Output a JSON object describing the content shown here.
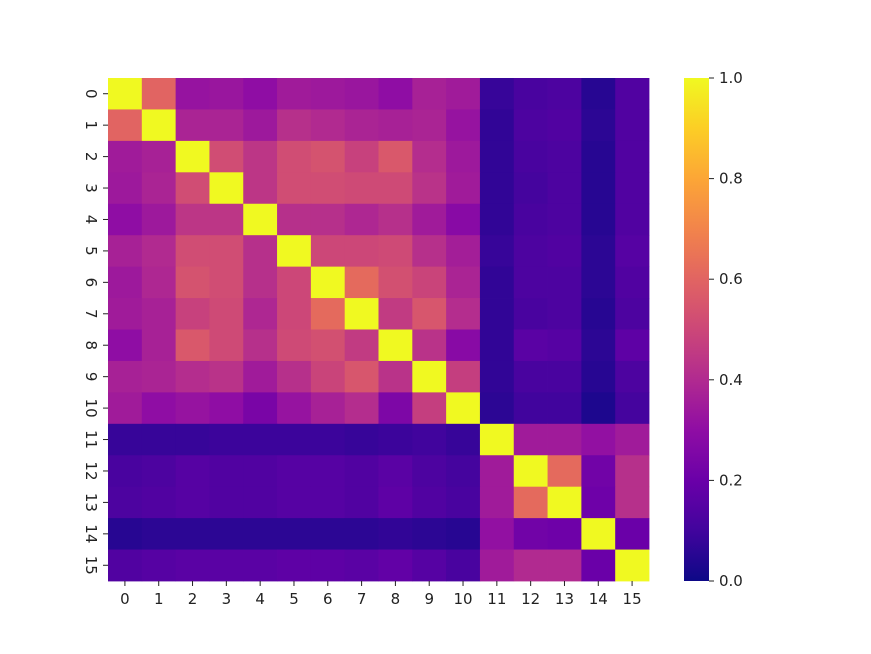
{
  "chart_data": {
    "type": "heatmap",
    "title": "",
    "xlabel": "",
    "ylabel": "",
    "colormap": "plasma",
    "x_categories": [
      "0",
      "1",
      "2",
      "3",
      "4",
      "5",
      "6",
      "7",
      "8",
      "9",
      "10",
      "11",
      "12",
      "13",
      "14",
      "15"
    ],
    "y_categories": [
      "0",
      "1",
      "2",
      "3",
      "4",
      "5",
      "6",
      "7",
      "8",
      "9",
      "10",
      "11",
      "12",
      "13",
      "14",
      "15"
    ],
    "colorbar": {
      "range": [
        0.0,
        1.0
      ],
      "ticks": [
        0.0,
        0.2,
        0.4,
        0.6,
        0.8,
        1.0
      ],
      "tick_labels": [
        "0.0",
        "0.2",
        "0.4",
        "0.6",
        "0.8",
        "1.0"
      ]
    },
    "values": [
      [
        1.0,
        0.6,
        0.32,
        0.33,
        0.3,
        0.35,
        0.34,
        0.33,
        0.3,
        0.37,
        0.35,
        0.08,
        0.12,
        0.13,
        0.05,
        0.14
      ],
      [
        0.6,
        1.0,
        0.38,
        0.38,
        0.34,
        0.42,
        0.4,
        0.38,
        0.37,
        0.38,
        0.32,
        0.07,
        0.13,
        0.14,
        0.06,
        0.14
      ],
      [
        0.35,
        0.37,
        1.0,
        0.52,
        0.44,
        0.52,
        0.54,
        0.48,
        0.56,
        0.41,
        0.34,
        0.07,
        0.12,
        0.13,
        0.05,
        0.14
      ],
      [
        0.34,
        0.38,
        0.52,
        1.0,
        0.44,
        0.52,
        0.52,
        0.51,
        0.51,
        0.43,
        0.35,
        0.07,
        0.11,
        0.13,
        0.05,
        0.14
      ],
      [
        0.3,
        0.34,
        0.44,
        0.44,
        1.0,
        0.42,
        0.42,
        0.39,
        0.42,
        0.35,
        0.28,
        0.07,
        0.12,
        0.13,
        0.05,
        0.14
      ],
      [
        0.37,
        0.4,
        0.52,
        0.52,
        0.42,
        1.0,
        0.5,
        0.5,
        0.51,
        0.42,
        0.36,
        0.08,
        0.13,
        0.14,
        0.06,
        0.15
      ],
      [
        0.34,
        0.39,
        0.54,
        0.52,
        0.42,
        0.5,
        1.0,
        0.62,
        0.53,
        0.49,
        0.38,
        0.07,
        0.13,
        0.13,
        0.06,
        0.14
      ],
      [
        0.35,
        0.37,
        0.48,
        0.51,
        0.39,
        0.5,
        0.62,
        1.0,
        0.46,
        0.55,
        0.41,
        0.07,
        0.12,
        0.13,
        0.05,
        0.13
      ],
      [
        0.3,
        0.37,
        0.56,
        0.51,
        0.42,
        0.51,
        0.53,
        0.46,
        1.0,
        0.43,
        0.28,
        0.07,
        0.16,
        0.15,
        0.06,
        0.17
      ],
      [
        0.37,
        0.38,
        0.41,
        0.43,
        0.35,
        0.42,
        0.49,
        0.55,
        0.43,
        1.0,
        0.47,
        0.07,
        0.12,
        0.12,
        0.05,
        0.13
      ],
      [
        0.35,
        0.3,
        0.32,
        0.3,
        0.24,
        0.32,
        0.37,
        0.41,
        0.25,
        0.47,
        1.0,
        0.06,
        0.1,
        0.1,
        0.03,
        0.11
      ],
      [
        0.08,
        0.08,
        0.08,
        0.09,
        0.09,
        0.09,
        0.09,
        0.08,
        0.09,
        0.1,
        0.08,
        1.0,
        0.35,
        0.35,
        0.31,
        0.35
      ],
      [
        0.12,
        0.13,
        0.15,
        0.14,
        0.14,
        0.15,
        0.15,
        0.14,
        0.16,
        0.13,
        0.11,
        0.35,
        1.0,
        0.62,
        0.22,
        0.42
      ],
      [
        0.13,
        0.14,
        0.15,
        0.14,
        0.14,
        0.15,
        0.15,
        0.14,
        0.17,
        0.14,
        0.12,
        0.35,
        0.62,
        1.0,
        0.21,
        0.42
      ],
      [
        0.05,
        0.06,
        0.06,
        0.06,
        0.06,
        0.06,
        0.06,
        0.06,
        0.07,
        0.06,
        0.05,
        0.31,
        0.22,
        0.21,
        1.0,
        0.2
      ],
      [
        0.14,
        0.15,
        0.16,
        0.16,
        0.16,
        0.17,
        0.17,
        0.16,
        0.18,
        0.15,
        0.12,
        0.35,
        0.4,
        0.4,
        0.2,
        1.0
      ]
    ]
  }
}
